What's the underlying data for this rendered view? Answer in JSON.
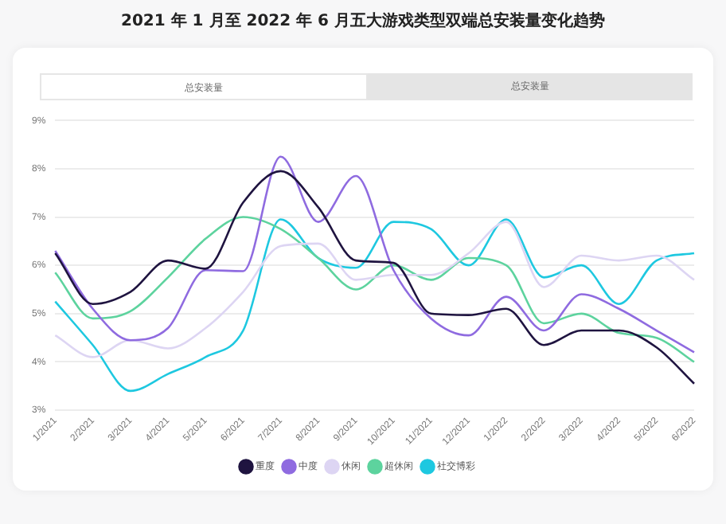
{
  "chart_data": {
    "type": "line",
    "title": "2021 年 1 月至 2022 年 6 月五大游戏类型双端总安装量变化趋势",
    "annotations": [
      "总安装量",
      "总安装量"
    ],
    "categories": [
      "1/2021",
      "2/2021",
      "3/2021",
      "4/2021",
      "5/2021",
      "6/2021",
      "7/2021",
      "8/2021",
      "9/2021",
      "10/2021",
      "11/2021",
      "12/2021",
      "1/2022",
      "2/2022",
      "3/2022",
      "4/2022",
      "5/2022",
      "6/2022"
    ],
    "series": [
      {
        "name": "重度",
        "color": "#1f1440",
        "values": [
          6.25,
          5.2,
          5.45,
          6.1,
          5.93,
          7.3,
          7.95,
          7.2,
          6.1,
          6.05,
          5.0,
          4.97,
          5.1,
          4.35,
          4.65,
          4.65,
          4.3,
          3.55
        ]
      },
      {
        "name": "中度",
        "color": "#8f6be0",
        "values": [
          6.3,
          5.1,
          4.45,
          4.7,
          5.9,
          5.88,
          8.25,
          6.9,
          7.85,
          5.9,
          4.9,
          4.55,
          5.35,
          4.65,
          5.4,
          5.1,
          4.65,
          4.2
        ]
      },
      {
        "name": "休闲",
        "color": "#ddd5f3",
        "values": [
          4.55,
          4.1,
          4.45,
          4.28,
          4.7,
          5.45,
          6.4,
          6.45,
          5.7,
          5.8,
          5.8,
          6.25,
          6.9,
          5.55,
          6.2,
          6.1,
          6.2,
          5.7
        ]
      },
      {
        "name": "超休闲",
        "color": "#5dd39e",
        "values": [
          5.85,
          4.9,
          5.05,
          5.75,
          6.55,
          7.0,
          6.75,
          6.15,
          5.5,
          6.0,
          5.7,
          6.15,
          6.0,
          4.8,
          5.0,
          4.6,
          4.5,
          4.0
        ]
      },
      {
        "name": "社交博彩",
        "color": "#1ec8e0",
        "values": [
          5.25,
          4.35,
          3.4,
          3.75,
          4.1,
          4.65,
          6.95,
          6.15,
          5.95,
          6.9,
          6.75,
          6.0,
          6.95,
          5.75,
          6.0,
          5.2,
          6.1,
          6.25
        ]
      }
    ],
    "ylim": [
      3,
      9
    ],
    "yticks": [
      {
        "value": 3,
        "label": "3%"
      },
      {
        "value": 4,
        "label": "4%"
      },
      {
        "value": 5,
        "label": "5%"
      },
      {
        "value": 6,
        "label": "6%"
      },
      {
        "value": 7,
        "label": "7%"
      },
      {
        "value": 8,
        "label": "8%"
      },
      {
        "value": 9,
        "label": "9%"
      }
    ],
    "grid": "y",
    "legend": "bottom",
    "marker": "none",
    "line_style": "solid"
  }
}
